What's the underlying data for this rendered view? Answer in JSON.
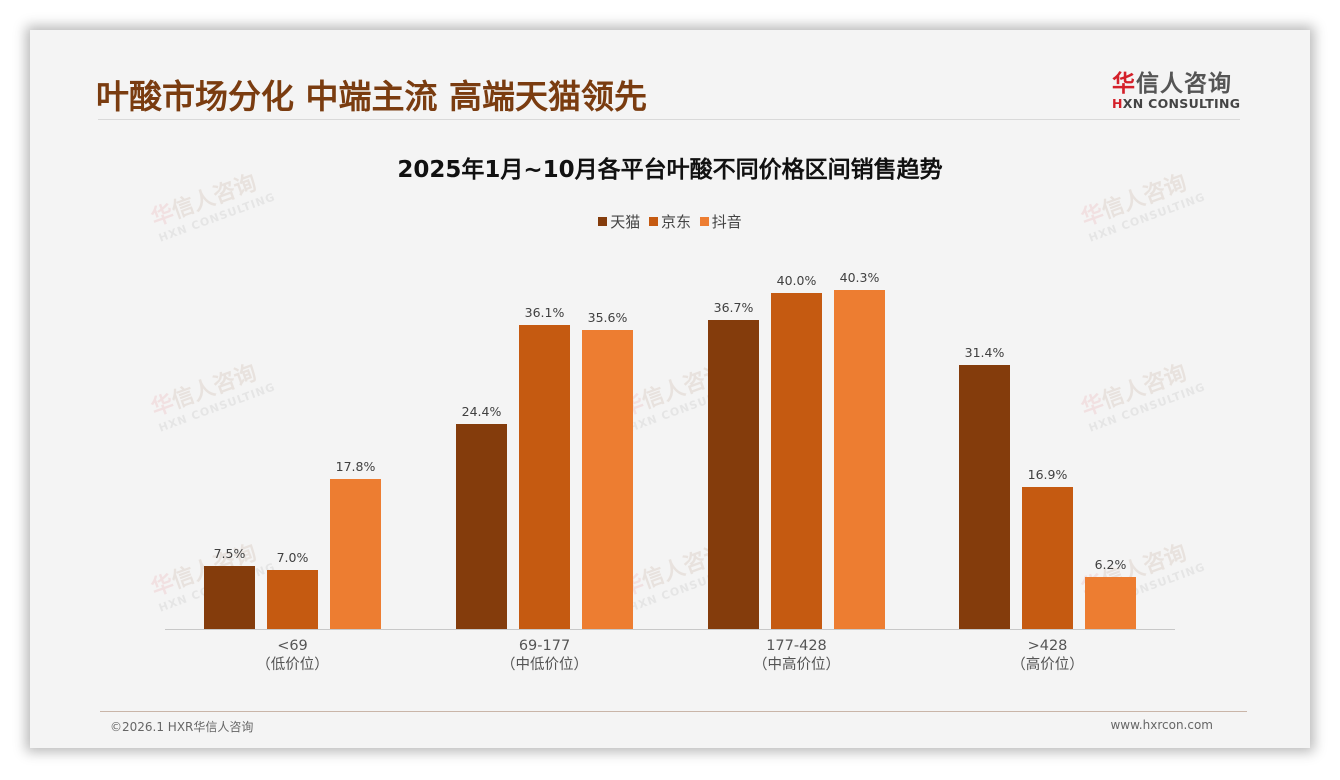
{
  "header": {
    "title": "叶酸市场分化 中端主流 高端天猫领先",
    "logo_cn_prefix": "华",
    "logo_cn_rest": "信人咨询",
    "logo_en_prefix": "H",
    "logo_en_rest": "XN CONSULTING"
  },
  "footer": {
    "copyright": "©2026.1 HXR华信人咨询",
    "website": "www.hxrcon.com"
  },
  "watermark": {
    "cn_prefix": "华",
    "cn_rest": "信人咨询",
    "en": "HXN CONSULTING"
  },
  "colors": {
    "title": "#7a3c10",
    "tmall": "#843c0c",
    "jd": "#c55a11",
    "douyin": "#ed7d31",
    "background": "#f4f4f4"
  },
  "chart_data": {
    "type": "bar",
    "title": "2025年1月~10月各平台叶酸不同价格区间销售趋势",
    "xlabel": "",
    "ylabel": "",
    "ylim": [
      0,
      45
    ],
    "grid": false,
    "legend_position": "top",
    "categories": [
      "<69",
      "69-177",
      "177-428",
      ">428"
    ],
    "category_sublabels": [
      "（低价位）",
      "（中低价位）",
      "（中高价位）",
      "（高价位）"
    ],
    "series": [
      {
        "name": "天猫",
        "color": "#843c0c",
        "values": [
          7.5,
          24.4,
          36.7,
          31.4
        ],
        "labels": [
          "7.5%",
          "24.4%",
          "36.7%",
          "31.4%"
        ]
      },
      {
        "name": "京东",
        "color": "#c55a11",
        "values": [
          7.0,
          36.1,
          40.0,
          16.9
        ],
        "labels": [
          "7.0%",
          "36.1%",
          "40.0%",
          "16.9%"
        ]
      },
      {
        "name": "抖音",
        "color": "#ed7d31",
        "values": [
          17.8,
          35.6,
          40.3,
          6.2
        ],
        "labels": [
          "17.8%",
          "35.6%",
          "40.3%",
          "6.2%"
        ]
      }
    ]
  }
}
